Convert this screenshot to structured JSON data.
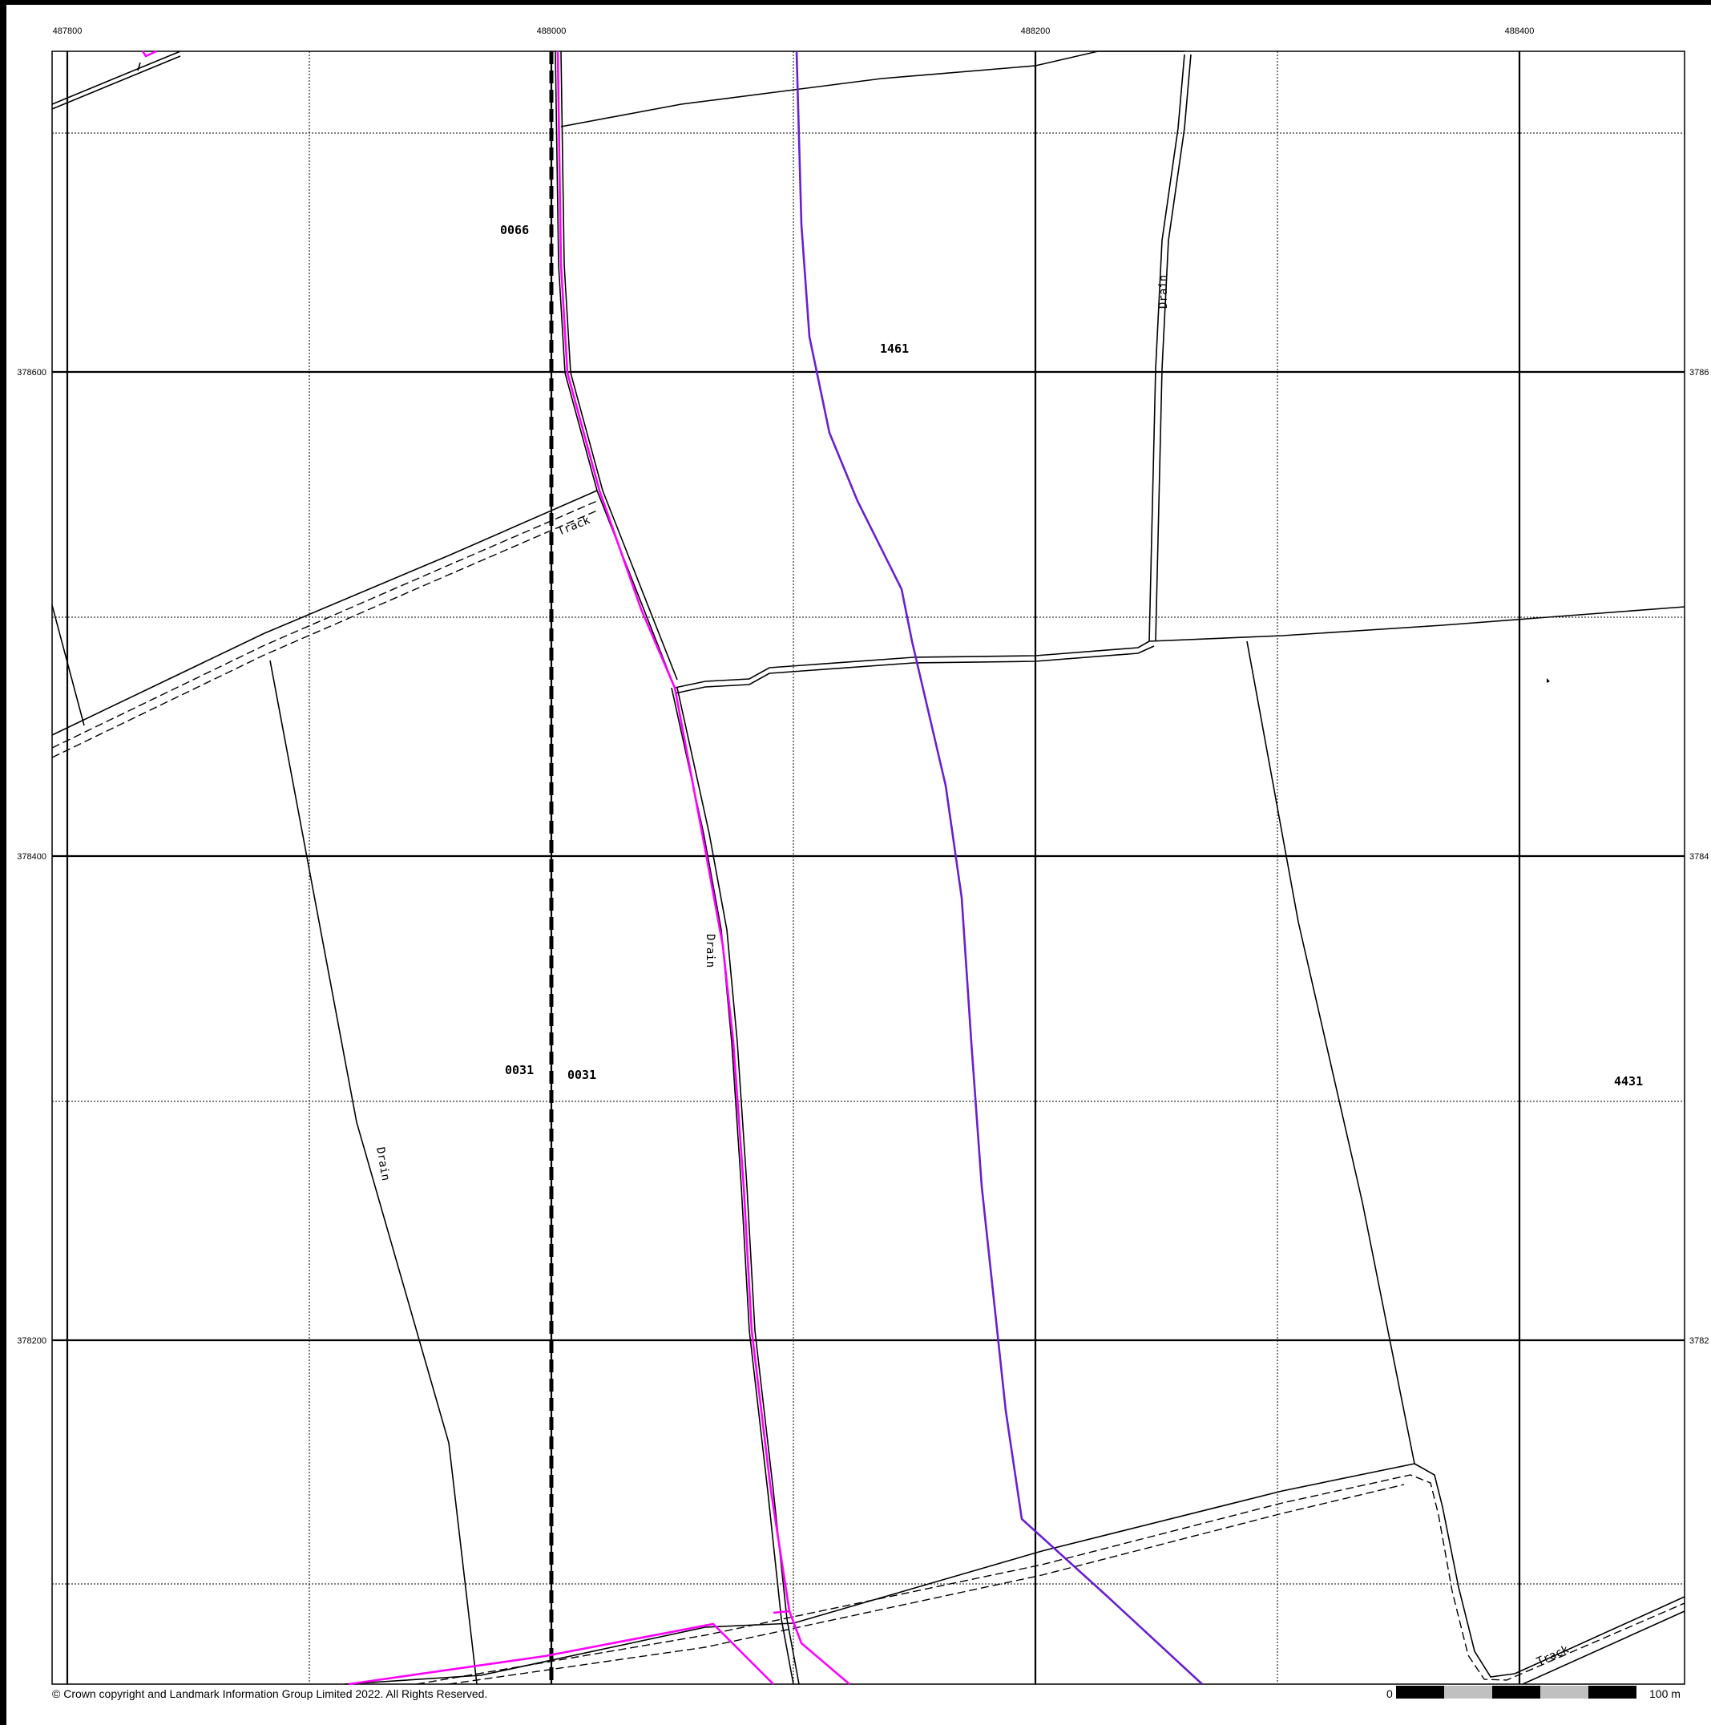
{
  "eastings": [
    {
      "label": "487800"
    },
    {
      "label": "488000"
    },
    {
      "label": "488200"
    },
    {
      "label": "488400"
    }
  ],
  "northings": [
    {
      "label": "378600",
      "right_label": "3786"
    },
    {
      "label": "378400",
      "right_label": "3784"
    },
    {
      "label": "378200",
      "right_label": "3782"
    }
  ],
  "parcels": {
    "p0066": "0066",
    "p1461": "1461",
    "p0031a": "0031",
    "p0031b": "0031",
    "p4431": "4431"
  },
  "features": {
    "drain_ne": "Drain",
    "drain_mid": "Drain",
    "drain_w": "Drain",
    "track_n": "Track",
    "track_se": "Track"
  },
  "footer": {
    "copyright": "© Crown copyright and Landmark Information Group Limited 2022.  All Rights Reserved.",
    "scale_start": "0",
    "scale_end": "100 m"
  },
  "colors": {
    "boundary_magenta": "#ff00ff",
    "boundary_purple": "#6a1fd0",
    "line": "#000000",
    "scalebar_dark": "#000000",
    "scalebar_light": "#c0c0c0"
  }
}
